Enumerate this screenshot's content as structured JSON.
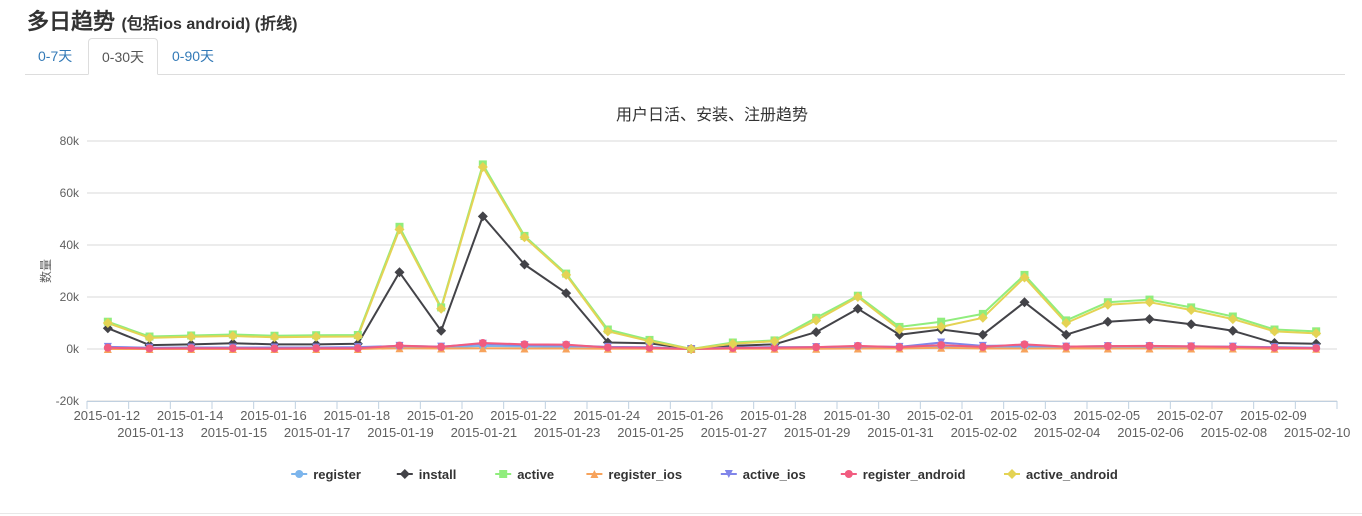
{
  "page": {
    "title": "多日趋势",
    "subtitle": "(包括ios android) (折线)"
  },
  "tabs": [
    {
      "label": "0-7天",
      "active": false
    },
    {
      "label": "0-30天",
      "active": true
    },
    {
      "label": "0-90天",
      "active": false
    }
  ],
  "chart_data": {
    "type": "line",
    "title": "用户日活、安装、注册趋势",
    "ylabel": "数量",
    "xlabel": "",
    "ylim": [
      -20000,
      80000
    ],
    "yticks": [
      -20000,
      0,
      20000,
      40000,
      60000,
      80000
    ],
    "ytick_labels": [
      "-20k",
      "0k",
      "20k",
      "40k",
      "60k",
      "80k"
    ],
    "grid": true,
    "legend_position": "bottom-center",
    "categories": [
      "2015-01-12",
      "2015-01-13",
      "2015-01-14",
      "2015-01-15",
      "2015-01-16",
      "2015-01-17",
      "2015-01-18",
      "2015-01-19",
      "2015-01-20",
      "2015-01-21",
      "2015-01-22",
      "2015-01-23",
      "2015-01-24",
      "2015-01-25",
      "2015-01-26",
      "2015-01-27",
      "2015-01-28",
      "2015-01-29",
      "2015-01-30",
      "2015-01-31",
      "2015-02-01",
      "2015-02-02",
      "2015-02-03",
      "2015-02-04",
      "2015-02-05",
      "2015-02-06",
      "2015-02-07",
      "2015-02-08",
      "2015-02-09",
      "2015-02-10"
    ],
    "series": [
      {
        "name": "register",
        "color": "#7cb5ec",
        "marker": "circle",
        "values": [
          500,
          300,
          400,
          500,
          400,
          400,
          500,
          800,
          600,
          1200,
          1000,
          900,
          700,
          600,
          0,
          500,
          600,
          600,
          800,
          800,
          1200,
          800,
          900,
          800,
          900,
          900,
          800,
          700,
          600,
          400
        ]
      },
      {
        "name": "install",
        "color": "#434348",
        "marker": "diamond",
        "values": [
          8000,
          1500,
          1800,
          2200,
          1800,
          1800,
          2000,
          29500,
          7000,
          51000,
          32500,
          21500,
          2500,
          2200,
          0,
          1200,
          1800,
          6500,
          15500,
          5500,
          7500,
          5500,
          18000,
          5500,
          10500,
          11500,
          9500,
          7000,
          2300,
          2000
        ]
      },
      {
        "name": "active",
        "color": "#90ed7d",
        "marker": "square",
        "values": [
          10500,
          4800,
          5200,
          5600,
          5100,
          5300,
          5400,
          47000,
          16000,
          71000,
          43500,
          29000,
          7500,
          3500,
          0,
          2500,
          3300,
          12000,
          20500,
          8500,
          10500,
          13500,
          28500,
          11000,
          18000,
          19000,
          16000,
          12500,
          7500,
          6800
        ]
      },
      {
        "name": "register_ios",
        "color": "#f7a35c",
        "marker": "triangle",
        "values": [
          0,
          0,
          0,
          0,
          0,
          0,
          0,
          300,
          200,
          300,
          200,
          200,
          100,
          100,
          0,
          100,
          100,
          100,
          200,
          200,
          500,
          200,
          200,
          200,
          200,
          200,
          200,
          200,
          100,
          100
        ]
      },
      {
        "name": "active_ios",
        "color": "#8085e9",
        "marker": "triangle-down",
        "values": [
          800,
          500,
          600,
          600,
          600,
          600,
          700,
          1200,
          900,
          2000,
          1500,
          1400,
          800,
          700,
          0,
          600,
          700,
          700,
          1000,
          800,
          2500,
          1200,
          1400,
          900,
          1100,
          1100,
          1000,
          900,
          700,
          500
        ]
      },
      {
        "name": "register_android",
        "color": "#f15c80",
        "marker": "circle",
        "values": [
          500,
          200,
          300,
          300,
          200,
          300,
          300,
          1300,
          800,
          2300,
          1800,
          1700,
          600,
          500,
          0,
          400,
          500,
          700,
          1200,
          700,
          1500,
          800,
          1800,
          900,
          1100,
          1200,
          1000,
          800,
          500,
          300
        ]
      },
      {
        "name": "active_android",
        "color": "#e4d354",
        "marker": "diamond",
        "values": [
          10000,
          4300,
          4700,
          5000,
          4500,
          4700,
          4800,
          46000,
          15500,
          70000,
          43000,
          28500,
          6800,
          3000,
          0,
          2000,
          3000,
          11000,
          20000,
          7500,
          8500,
          12000,
          27500,
          10000,
          17000,
          18000,
          15000,
          11500,
          6800,
          6000
        ]
      }
    ]
  }
}
